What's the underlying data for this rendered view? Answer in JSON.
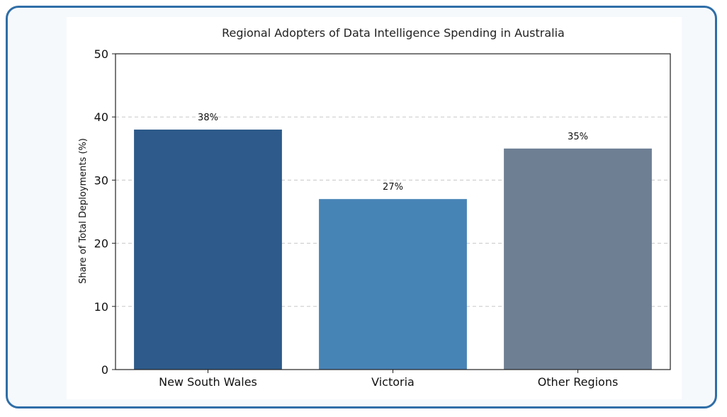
{
  "chart_data": {
    "type": "bar",
    "title": "Regional Adopters of Data Intelligence Spending in Australia",
    "xlabel": "",
    "ylabel": "Share of Total Deployments (%)",
    "categories": [
      "New South Wales",
      "Victoria",
      "Other Regions"
    ],
    "values": [
      38,
      27,
      35
    ],
    "value_labels": [
      "38%",
      "27%",
      "35%"
    ],
    "colors": [
      "#2d5a8a",
      "#4784b6",
      "#6e7f94"
    ],
    "ylim": [
      0,
      50
    ],
    "yticks": [
      0,
      10,
      20,
      30,
      40,
      50
    ],
    "grid": "horizontal-dashed",
    "legend": "none"
  },
  "colors": {
    "frame_border": "#2f6ea8",
    "frame_bg": "#f6f9fc",
    "grid": "#c8c8c8",
    "axis": "#222222"
  }
}
